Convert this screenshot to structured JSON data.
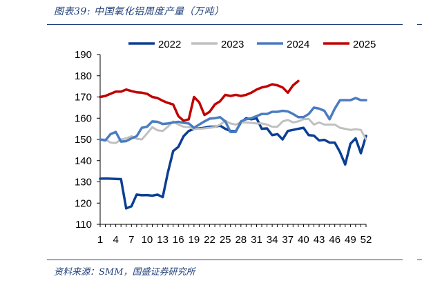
{
  "figure": {
    "title": "图表39:  中国氧化铝周度产量（万吨）",
    "source": "资料来源：SMM，国盛证券研究所"
  },
  "chart_data": {
    "type": "line",
    "title": "中国氧化铝周度产量（万吨）",
    "xlabel": "",
    "ylabel": "",
    "ylim": [
      110,
      190
    ],
    "yticks": [
      110,
      120,
      130,
      140,
      150,
      160,
      170,
      180,
      190
    ],
    "xlim": [
      1,
      52
    ],
    "xticks": [
      1,
      4,
      7,
      10,
      13,
      16,
      19,
      22,
      25,
      28,
      31,
      34,
      37,
      40,
      43,
      46,
      49,
      52
    ],
    "grid": false,
    "legend": "top",
    "series": [
      {
        "name": "2022",
        "color": "#0b3f93",
        "values": [
          131.5,
          131.6,
          131.5,
          131.4,
          131.3,
          117.5,
          118.5,
          124,
          123.7,
          123.8,
          123.5,
          124,
          122.8,
          134.5,
          144.5,
          146.5,
          151.5,
          154,
          155,
          155.2,
          155.5,
          156,
          156,
          156.5,
          155,
          154,
          153.8,
          158,
          160,
          159.5,
          160,
          155,
          155.2,
          152,
          152.5,
          150,
          154,
          154.5,
          155,
          155.5,
          152,
          151.8,
          149.5,
          149.8,
          148.5,
          148.5,
          144,
          138.2,
          148,
          150.5,
          143.5,
          151.7
        ]
      },
      {
        "name": "2023",
        "color": "#c0c0c0",
        "values": [
          150,
          150,
          148.5,
          148.3,
          150,
          150.5,
          151.5,
          150.3,
          150,
          152.8,
          155.8,
          154.3,
          154,
          156,
          158.5,
          157,
          156,
          155.8,
          154.9,
          155,
          155.2,
          155.5,
          155.8,
          157,
          158.8,
          157.5,
          157,
          158,
          158,
          157.8,
          157.5,
          157.5,
          157,
          156,
          156,
          158.5,
          159.2,
          158,
          158.5,
          159.5,
          159.7,
          157,
          158,
          157,
          157,
          157,
          155.5,
          155,
          154.5,
          154.8,
          154.5,
          150
        ]
      },
      {
        "name": "2024",
        "color": "#4a7cc0",
        "values": [
          150,
          149.5,
          152.5,
          153.5,
          149,
          149.2,
          150.5,
          151.5,
          155.5,
          156,
          158.5,
          158.3,
          157.3,
          157.5,
          158,
          158.3,
          157.8,
          157.5,
          155.5,
          157,
          158.5,
          159.8,
          160,
          160.5,
          158.5,
          153.5,
          153.5,
          158.5,
          159.5,
          160,
          161,
          162,
          162,
          163,
          163,
          163.5,
          163.2,
          162,
          160.5,
          160.5,
          162,
          165,
          164.5,
          163.5,
          159.5,
          164.5,
          168.5,
          168.5,
          168.5,
          169.5,
          168.5,
          168.5
        ]
      },
      {
        "name": "2025",
        "color": "#c00000",
        "values": [
          170,
          170.5,
          171.5,
          172.5,
          172.5,
          173.5,
          172.8,
          172.2,
          172,
          171.5,
          170,
          169.5,
          168.2,
          167.2,
          166.5,
          161,
          158.8,
          159.5,
          170,
          167.5,
          161.5,
          163,
          166.5,
          168,
          171,
          170.5,
          171,
          170.5,
          171,
          172,
          173.5,
          174.5,
          175,
          176,
          175.5,
          174.5,
          172,
          175.5,
          177.5
        ]
      }
    ]
  }
}
